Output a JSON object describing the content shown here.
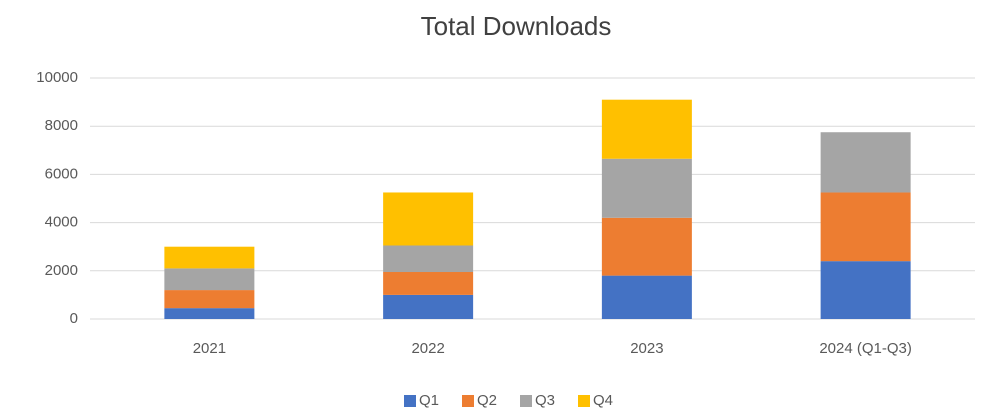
{
  "chart_data": {
    "type": "stacked_bar",
    "title": "Total Downloads",
    "categories": [
      "2021",
      "2022",
      "2023",
      "2024 (Q1-Q3)"
    ],
    "series": [
      {
        "name": "Q1",
        "color": "#4472c4",
        "values": [
          450,
          1000,
          1800,
          2400
        ]
      },
      {
        "name": "Q2",
        "color": "#ed7d31",
        "values": [
          750,
          950,
          2400,
          2850
        ]
      },
      {
        "name": "Q3",
        "color": "#a5a5a5",
        "values": [
          900,
          1100,
          2450,
          2500
        ]
      },
      {
        "name": "Q4",
        "color": "#ffc000",
        "values": [
          900,
          2200,
          2450,
          null
        ]
      }
    ],
    "ylim": [
      0,
      10000
    ],
    "yticks": [
      0,
      2000,
      4000,
      6000,
      8000,
      10000
    ],
    "grid": true,
    "legend": "bottom"
  }
}
